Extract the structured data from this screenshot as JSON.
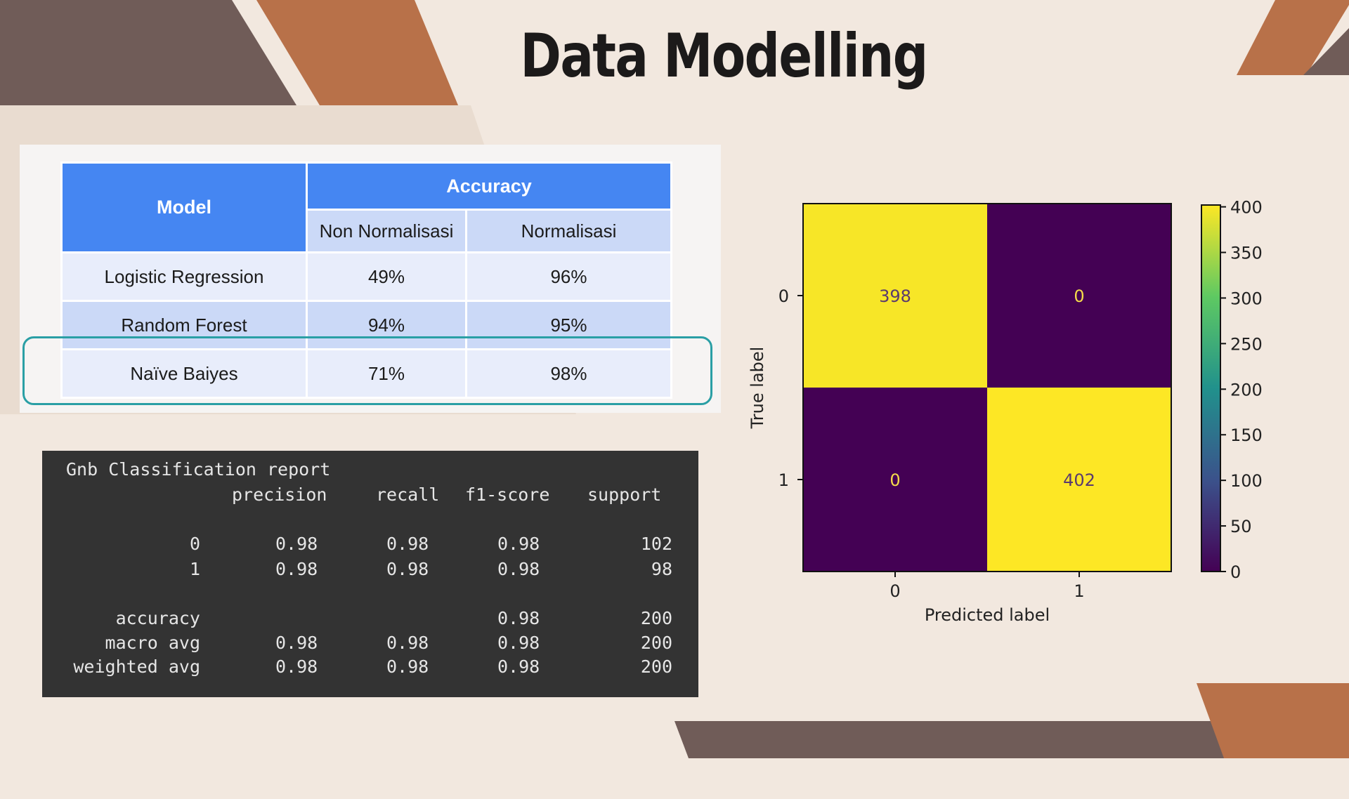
{
  "title": "Data Modelling",
  "accuracy_table": {
    "model_header": "Model",
    "accuracy_header": "Accuracy",
    "sub_headers": [
      "Non Normalisasi",
      "Normalisasi"
    ],
    "rows": [
      {
        "model": "Logistic Regression",
        "non_norm": "49%",
        "norm": "96%"
      },
      {
        "model": "Random Forest",
        "non_norm": "94%",
        "norm": "95%"
      },
      {
        "model": "Naïve Baiyes",
        "non_norm": "71%",
        "norm": "98%"
      }
    ],
    "highlighted_row": "Naïve Baiyes"
  },
  "report": {
    "title": "Gnb Classification report",
    "columns": [
      "precision",
      "recall",
      "f1-score",
      "support"
    ],
    "rows": [
      {
        "label": "0",
        "precision": "0.98",
        "recall": "0.98",
        "f1": "0.98",
        "support": "102"
      },
      {
        "label": "1",
        "precision": "0.98",
        "recall": "0.98",
        "f1": "0.98",
        "support": "98"
      },
      {
        "label": "accuracy",
        "precision": "",
        "recall": "",
        "f1": "0.98",
        "support": "200"
      },
      {
        "label": "macro avg",
        "precision": "0.98",
        "recall": "0.98",
        "f1": "0.98",
        "support": "200"
      },
      {
        "label": "weighted avg",
        "precision": "0.98",
        "recall": "0.98",
        "f1": "0.98",
        "support": "200"
      }
    ]
  },
  "chart_data": {
    "type": "heatmap",
    "matrix": [
      [
        398,
        0
      ],
      [
        0,
        402
      ]
    ],
    "x_ticks": [
      "0",
      "1"
    ],
    "y_ticks": [
      "0",
      "1"
    ],
    "xlabel": "Predicted label",
    "ylabel": "True label",
    "colorbar_ticks": [
      0,
      50,
      100,
      150,
      200,
      250,
      300,
      350,
      400
    ],
    "colorbar_range": [
      0,
      402
    ],
    "colormap": "viridis",
    "colors": {
      "high": "#fde725",
      "low": "#440154",
      "text_on_high": "#5a3a6e",
      "text_on_low": "#f5dc4a"
    }
  },
  "colors": {
    "background": "#f2e8df",
    "brown": "#b87149",
    "taupe": "#705c58",
    "table_header": "#4586f2",
    "highlight": "#2a9fa5",
    "report_bg": "#333333"
  }
}
